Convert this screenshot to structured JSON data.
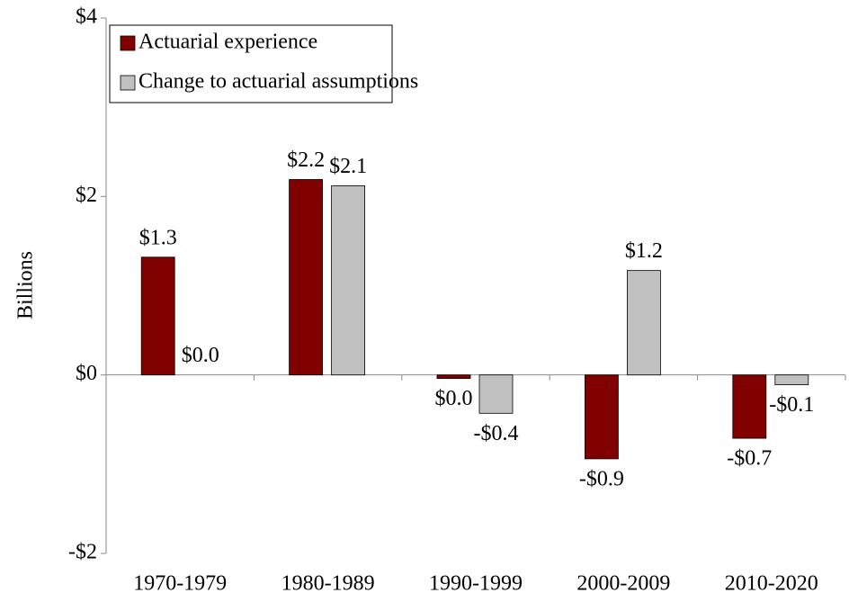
{
  "chart_data": {
    "type": "bar",
    "y_label": "Billions",
    "categories": [
      "1970-1979",
      "1980-1989",
      "1990-1999",
      "2000-2009",
      "2010-2020"
    ],
    "series": [
      {
        "name": "Actuarial experience",
        "color": "#800000",
        "values": [
          1.32,
          2.19,
          -0.04,
          -0.94,
          -0.71
        ],
        "value_labels": [
          "$1.3",
          "$2.2",
          "$0.0",
          "-$0.9",
          "-$0.7"
        ]
      },
      {
        "name": "Change to actuarial assumptions",
        "color": "#c0c0c0",
        "values": [
          0,
          2.12,
          -0.43,
          1.17,
          -0.11
        ],
        "value_labels": [
          "$0.0",
          "$2.1",
          "-$0.4",
          "$1.2",
          "-$0.1"
        ]
      }
    ],
    "ylim": [
      -2,
      4
    ],
    "yticks": [
      {
        "value": -2,
        "label": "-$2"
      },
      {
        "value": 0,
        "label": "$0"
      },
      {
        "value": 2,
        "label": "$2"
      },
      {
        "value": 4,
        "label": "$4"
      }
    ],
    "legend": "upper left"
  }
}
